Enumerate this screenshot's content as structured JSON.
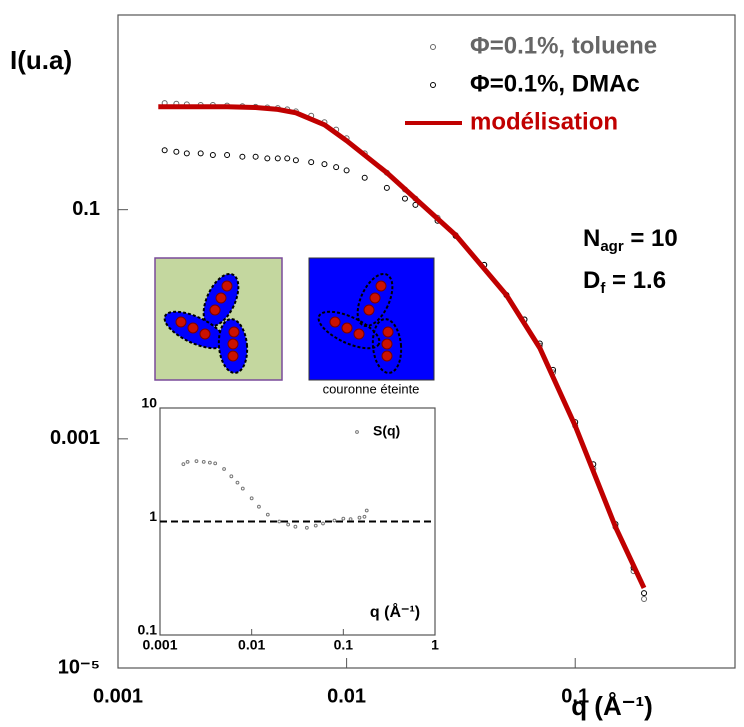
{
  "chart_data": [
    {
      "type": "scatter",
      "xlabel": "q (Å⁻¹)",
      "ylabel": "I(u.a)",
      "xscale": "log",
      "yscale": "log",
      "xlim": [
        0.001,
        0.5
      ],
      "ylim": [
        1e-05,
        5
      ],
      "xticks": [
        0.001,
        0.01,
        0.1
      ],
      "yticks": [
        {
          "value": 1e-05,
          "label": "10⁻⁵"
        },
        0.001,
        0.1
      ],
      "legend": "upper right",
      "series": [
        {
          "name": "Φ=0.1%, toluene",
          "color": "#666666",
          "style": "markers",
          "x": [
            0.0016,
            0.0018,
            0.002,
            0.0023,
            0.0026,
            0.003,
            0.0035,
            0.004,
            0.0045,
            0.005,
            0.0055,
            0.006,
            0.007,
            0.008,
            0.009,
            0.01,
            0.012,
            0.015,
            0.018,
            0.02,
            0.025,
            0.03,
            0.04,
            0.05,
            0.06,
            0.07,
            0.08,
            0.1,
            0.12,
            0.15,
            0.18,
            0.2
          ],
          "values": [
            0.85,
            0.84,
            0.83,
            0.82,
            0.82,
            0.81,
            0.8,
            0.79,
            0.78,
            0.77,
            0.75,
            0.72,
            0.66,
            0.58,
            0.5,
            0.42,
            0.31,
            0.21,
            0.15,
            0.125,
            0.085,
            0.06,
            0.033,
            0.018,
            0.011,
            0.0065,
            0.0038,
            0.0013,
            0.00055,
            0.00017,
            7e-05,
            4e-05
          ]
        },
        {
          "name": "Φ=0.1%, DMAc",
          "color": "#000000",
          "style": "markers",
          "x": [
            0.0016,
            0.0018,
            0.002,
            0.0023,
            0.0026,
            0.003,
            0.0035,
            0.004,
            0.0045,
            0.005,
            0.0055,
            0.006,
            0.007,
            0.008,
            0.009,
            0.01,
            0.012,
            0.015,
            0.018,
            0.02,
            0.025,
            0.03,
            0.04,
            0.05,
            0.06,
            0.07,
            0.08,
            0.1,
            0.12,
            0.15,
            0.18,
            0.2
          ],
          "values": [
            0.33,
            0.32,
            0.31,
            0.31,
            0.3,
            0.3,
            0.29,
            0.29,
            0.28,
            0.28,
            0.28,
            0.27,
            0.26,
            0.25,
            0.235,
            0.22,
            0.19,
            0.155,
            0.125,
            0.11,
            0.08,
            0.059,
            0.033,
            0.018,
            0.011,
            0.0068,
            0.004,
            0.0014,
            0.0006,
            0.00018,
            7.5e-05,
            4.5e-05
          ]
        },
        {
          "name": "modélisation",
          "color": "#c00000",
          "style": "line",
          "x": [
            0.0015,
            0.002,
            0.003,
            0.004,
            0.005,
            0.006,
            0.008,
            0.01,
            0.015,
            0.02,
            0.03,
            0.05,
            0.07,
            0.1,
            0.15,
            0.2
          ],
          "values": [
            0.79,
            0.79,
            0.79,
            0.78,
            0.75,
            0.7,
            0.55,
            0.4,
            0.21,
            0.125,
            0.06,
            0.018,
            0.0062,
            0.0013,
            0.00017,
            5e-05
          ]
        }
      ],
      "annotations": [
        {
          "base": "N",
          "sub": "agr",
          "rest": " = 10"
        },
        {
          "base": "D",
          "sub": "f",
          "rest": " = 1.6"
        }
      ],
      "image_caption": "couronne éteinte"
    },
    {
      "type": "scatter",
      "xlabel": "q (Å⁻¹)",
      "xscale": "log",
      "yscale": "log",
      "xlim": [
        0.001,
        1
      ],
      "ylim": [
        0.1,
        10
      ],
      "xticks": [
        0.001,
        0.01,
        0.1,
        1
      ],
      "yticks": [
        0.1,
        1,
        10
      ],
      "reference_line": 1,
      "legend": "upper right",
      "series": [
        {
          "name": "S(q)",
          "color": "#777777",
          "style": "markers",
          "x": [
            0.0018,
            0.002,
            0.0025,
            0.003,
            0.0035,
            0.004,
            0.005,
            0.006,
            0.007,
            0.008,
            0.01,
            0.012,
            0.015,
            0.02,
            0.025,
            0.03,
            0.04,
            0.05,
            0.06,
            0.08,
            0.1,
            0.12,
            0.15,
            0.17,
            0.18
          ],
          "values": [
            3.2,
            3.35,
            3.4,
            3.35,
            3.3,
            3.25,
            2.9,
            2.5,
            2.2,
            1.95,
            1.6,
            1.35,
            1.15,
            1.0,
            0.94,
            0.9,
            0.88,
            0.92,
            0.96,
            1.02,
            1.06,
            1.05,
            1.08,
            1.1,
            1.25
          ]
        }
      ]
    }
  ]
}
